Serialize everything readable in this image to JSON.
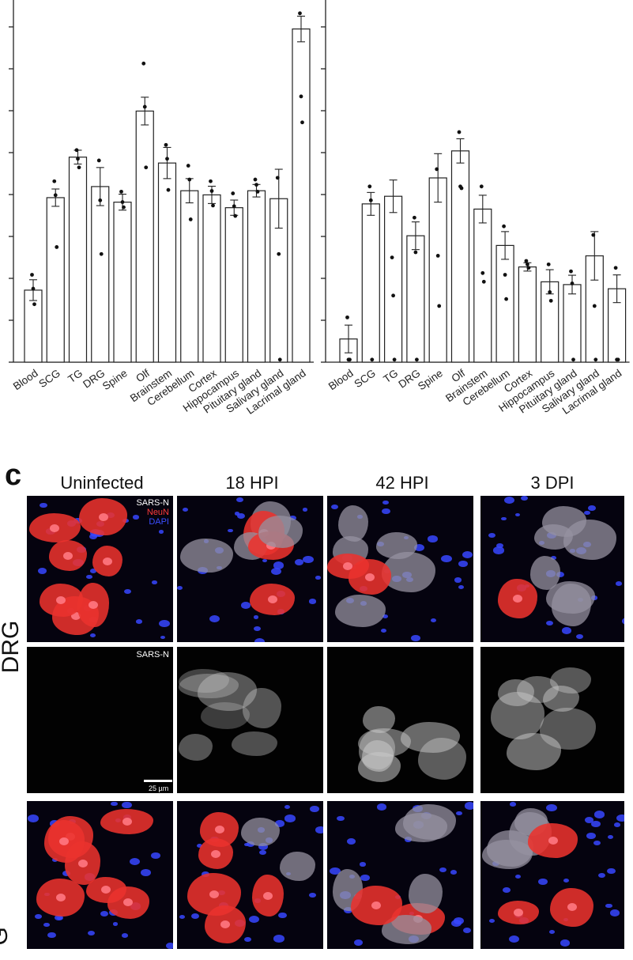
{
  "chart_data": [
    {
      "type": "bar",
      "categories": [
        "Blood",
        "SCG",
        "TG",
        "DRG",
        "Spine",
        "Olf",
        "Brainstem",
        "Cerebellum",
        "Cortex",
        "Hippocampus",
        "Pituitary gland",
        "Salivary gland",
        "Lacrimal gland"
      ],
      "values": [
        0.208,
        0.475,
        0.592,
        0.507,
        0.462,
        0.725,
        0.575,
        0.495,
        0.483,
        0.446,
        0.495,
        0.472,
        0.962
      ],
      "errors": [
        0.03,
        0.025,
        0.02,
        0.055,
        0.023,
        0.04,
        0.045,
        0.035,
        0.025,
        0.022,
        0.018,
        0.085,
        0.037
      ],
      "points": [
        [
          0.25,
          0.21,
          0.165
        ],
        [
          0.52,
          0.48,
          0.33
        ],
        [
          0.61,
          0.585,
          0.56
        ],
        [
          0.58,
          0.465,
          0.31
        ],
        [
          0.49,
          0.46,
          0.445
        ],
        [
          0.86,
          0.735,
          0.56
        ],
        [
          0.625,
          0.585,
          0.495
        ],
        [
          0.565,
          0.525,
          0.41
        ],
        [
          0.52,
          0.492,
          0.45
        ],
        [
          0.485,
          0.448,
          0.42
        ],
        [
          0.525,
          0.51,
          0.49
        ],
        [
          0.53,
          0.31,
          0.005
        ],
        [
          1.005,
          0.765,
          0.69
        ]
      ],
      "title": "",
      "xlabel": "",
      "ylabel": "",
      "ylim": [
        0,
        1
      ],
      "grid": false
    },
    {
      "type": "bar",
      "categories": [
        "Blood",
        "SCG",
        "TG",
        "DRG",
        "Spine",
        "Olf",
        "Brainstem",
        "Cerebellum",
        "Cortex",
        "Hippocampus",
        "Pituitary gland",
        "Salivary gland",
        "Lacrimal gland"
      ],
      "values": [
        0.067,
        0.457,
        0.479,
        0.365,
        0.532,
        0.61,
        0.442,
        0.337,
        0.275,
        0.232,
        0.224,
        0.307,
        0.212
      ],
      "errors": [
        0.04,
        0.033,
        0.047,
        0.04,
        0.07,
        0.035,
        0.04,
        0.04,
        0.012,
        0.035,
        0.027,
        0.07,
        0.04
      ],
      "points": [
        [
          0.127,
          0.005,
          0.005
        ],
        [
          0.505,
          0.465,
          0.005
        ],
        [
          0.3,
          0.19,
          0.005
        ],
        [
          0.415,
          0.315,
          0.005
        ],
        [
          0.555,
          0.305,
          0.16
        ],
        [
          0.662,
          0.505,
          0.5
        ],
        [
          0.505,
          0.255,
          0.23
        ],
        [
          0.39,
          0.25,
          0.18
        ],
        [
          0.29,
          0.28,
          0.27
        ],
        [
          0.28,
          0.2,
          0.175
        ],
        [
          0.26,
          0.225,
          0.005
        ],
        [
          0.365,
          0.16,
          0.005
        ],
        [
          0.27,
          0.005,
          0.005
        ]
      ],
      "title": "",
      "xlabel": "",
      "ylabel": "",
      "ylim": [
        0,
        1
      ],
      "grid": false
    }
  ],
  "figure": {
    "panel_letter": "c",
    "columns": [
      "Uninfected",
      "18 HPI",
      "42 HPI",
      "3 DPI"
    ],
    "row_labels": [
      "DRG",
      "G"
    ],
    "channels": {
      "sars": "SARS-N",
      "neun": "NeuN",
      "dapi": "DAPI"
    },
    "channel_colors": {
      "sars": "#ffffff",
      "neun": "#ff3b3b",
      "dapi": "#3b4dff"
    },
    "scalebar_label": "25 µm"
  }
}
